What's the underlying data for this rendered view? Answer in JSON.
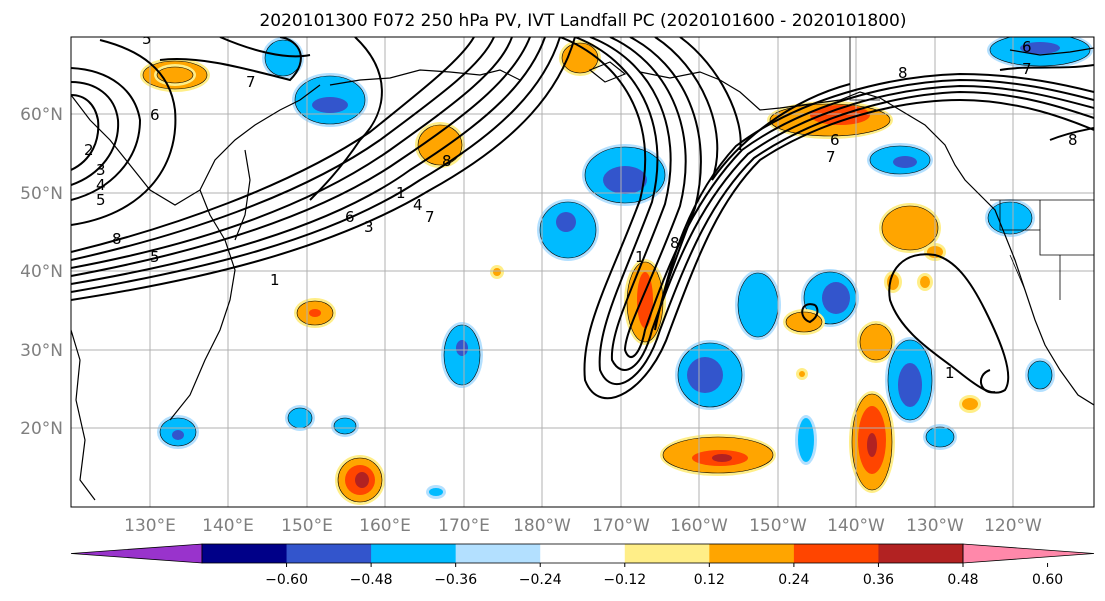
{
  "title": "2020101300 F072 250 hPa PV, IVT Landfall PC (2020101600 - 2020101800)",
  "lat_ticks": [
    "20°N",
    "30°N",
    "40°N",
    "50°N",
    "60°N"
  ],
  "lon_ticks": [
    "130°E",
    "140°E",
    "150°E",
    "160°E",
    "170°E",
    "180°W",
    "170°W",
    "160°W",
    "150°W",
    "140°W",
    "130°W",
    "120°W"
  ],
  "colorbar": {
    "colors": [
      "#9933cc",
      "#000088",
      "#3355cc",
      "#00bbff",
      "#b3e0ff",
      "#ffffff",
      "#ffee88",
      "#ffa500",
      "#ff4500",
      "#b22222",
      "#ff88aa"
    ],
    "tick_labels": [
      "-0.60",
      "-0.48",
      "-0.36",
      "-0.24",
      "-0.12",
      "0.12",
      "0.24",
      "0.36",
      "0.48",
      "0.60"
    ]
  },
  "contour_labels": [
    "1",
    "2",
    "3",
    "4",
    "5",
    "6",
    "7",
    "8"
  ]
}
